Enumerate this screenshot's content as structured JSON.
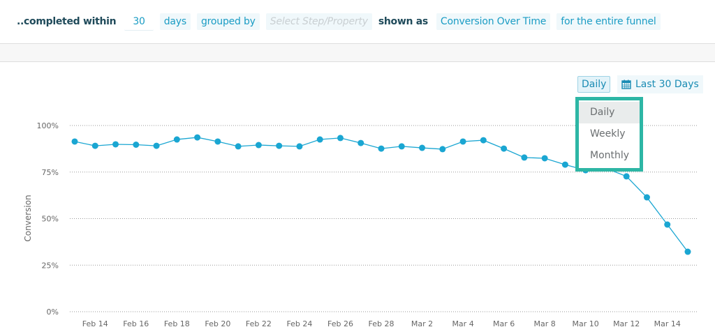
{
  "filter_bar": {
    "completed_within_label": "..completed within",
    "days_value": "30",
    "days_unit": "days",
    "grouped_by": "grouped by",
    "group_placeholder": "Select Step/Property",
    "shown_as_label": "shown as",
    "shown_as_value": "Conversion Over Time",
    "scope": "for the entire funnel"
  },
  "controls": {
    "granularity": "Daily",
    "date_range": "Last 30 Days",
    "date_icon": "calendar-icon",
    "dropdown_options": [
      "Daily",
      "Weekly",
      "Monthly"
    ],
    "dropdown_selected": "Daily"
  },
  "colors": {
    "accent": "#1aa6d2",
    "highlight": "#2db6a5"
  },
  "chart_data": {
    "type": "line",
    "ylabel": "Conversion",
    "xlabel": "",
    "ylim": [
      0,
      100
    ],
    "yticks": [
      "0%",
      "25%",
      "50%",
      "75%",
      "100%"
    ],
    "grid": true,
    "x": [
      "Feb 13",
      "Feb 14",
      "Feb 15",
      "Feb 16",
      "Feb 17",
      "Feb 18",
      "Feb 19",
      "Feb 20",
      "Feb 21",
      "Feb 22",
      "Feb 23",
      "Feb 24",
      "Feb 25",
      "Feb 26",
      "Feb 27",
      "Feb 28",
      "Mar 1",
      "Mar 2",
      "Mar 3",
      "Mar 4",
      "Mar 5",
      "Mar 6",
      "Mar 7",
      "Mar 8",
      "Mar 9",
      "Mar 10",
      "Mar 11",
      "Mar 12",
      "Mar 13",
      "Mar 14",
      "Mar 15"
    ],
    "xticks": [
      "Feb 14",
      "Feb 16",
      "Feb 18",
      "Feb 20",
      "Feb 22",
      "Feb 24",
      "Feb 26",
      "Feb 28",
      "Mar 2",
      "Mar 4",
      "Mar 6",
      "Mar 8",
      "Mar 10",
      "Mar 12",
      "Mar 14"
    ],
    "values": [
      91.4,
      89.1,
      89.9,
      89.7,
      89.1,
      92.5,
      93.6,
      91.4,
      88.8,
      89.5,
      89.1,
      88.8,
      92.5,
      93.3,
      90.6,
      87.6,
      88.8,
      88.0,
      87.3,
      91.4,
      92.1,
      87.6,
      82.8,
      82.4,
      79.0,
      76.0,
      77.0,
      72.7,
      61.4,
      46.8,
      32.2
    ]
  }
}
